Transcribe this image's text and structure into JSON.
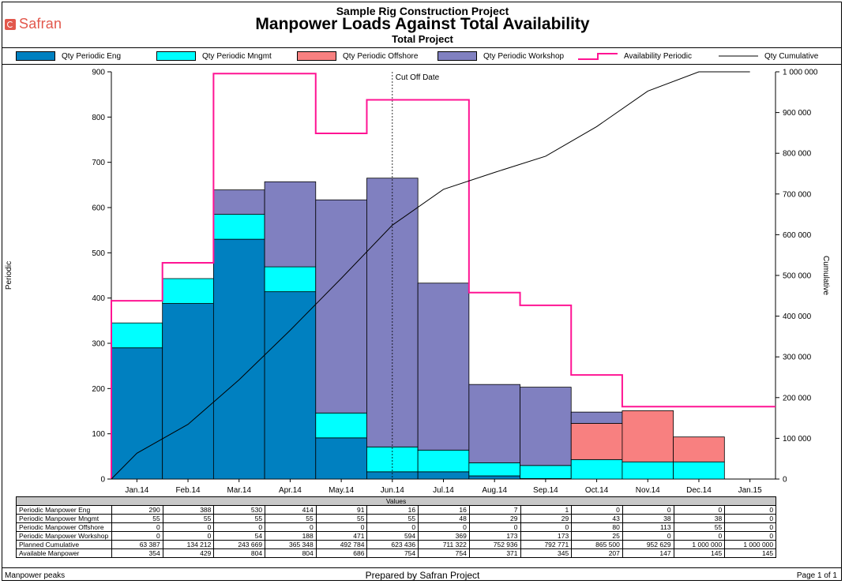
{
  "brand": {
    "name": "Safran",
    "color": "#e2574c"
  },
  "header": {
    "project": "Sample Rig Construction Project",
    "title": "Manpower Loads Against Total Availability",
    "subtitle": "Total Project"
  },
  "legend": [
    {
      "label": "Qty Periodic Eng",
      "kind": "box",
      "color": "#0080c0"
    },
    {
      "label": "Qty Periodic Mngmt",
      "kind": "box",
      "color": "#00ffff"
    },
    {
      "label": "Qty Periodic Offshore",
      "kind": "box",
      "color": "#f88080"
    },
    {
      "label": "Qty Periodic Workshop",
      "kind": "box",
      "color": "#8080c0"
    },
    {
      "label": "Availability Periodic",
      "kind": "step",
      "color": "#ff1493"
    },
    {
      "label": "Qty Cumulative",
      "kind": "line",
      "color": "#000000"
    }
  ],
  "chart_data": {
    "type": "bar",
    "stacked": true,
    "categories": [
      "Jan.14",
      "Feb.14",
      "Mar.14",
      "Apr.14",
      "May.14",
      "Jun.14",
      "Jul.14",
      "Aug.14",
      "Sep.14",
      "Oct.14",
      "Nov.14",
      "Dec.14",
      "Jan.15"
    ],
    "series": [
      {
        "name": "Qty Periodic Eng",
        "color": "#0080c0",
        "values": [
          290,
          388,
          530,
          414,
          91,
          16,
          16,
          7,
          1,
          0,
          0,
          0,
          0
        ]
      },
      {
        "name": "Qty Periodic Mngmt",
        "color": "#00ffff",
        "values": [
          55,
          55,
          55,
          55,
          55,
          55,
          48,
          29,
          29,
          43,
          38,
          38,
          0
        ]
      },
      {
        "name": "Qty Periodic Offshore",
        "color": "#f88080",
        "values": [
          0,
          0,
          0,
          0,
          0,
          0,
          0,
          0,
          0,
          80,
          113,
          55,
          0
        ]
      },
      {
        "name": "Qty Periodic Workshop",
        "color": "#8080c0",
        "values": [
          0,
          0,
          54,
          188,
          471,
          594,
          369,
          173,
          173,
          25,
          0,
          0,
          0
        ]
      }
    ],
    "availability": {
      "name": "Availability Periodic",
      "color": "#ff1493",
      "values": [
        394,
        478,
        896,
        896,
        764,
        838,
        838,
        412,
        384,
        230,
        160,
        160,
        160
      ]
    },
    "cumulative": {
      "name": "Qty Cumulative",
      "color": "#000000",
      "values": [
        63387,
        134212,
        243669,
        365348,
        492784,
        623436,
        711322,
        752936,
        792771,
        865500,
        952629,
        1000000,
        1000000
      ]
    },
    "ylabel": "Periodic",
    "y2label": "Cumulative",
    "ylim": [
      0,
      900
    ],
    "y2lim": [
      0,
      1000000
    ],
    "yticks": [
      "0",
      "100",
      "200",
      "300",
      "400",
      "500",
      "600",
      "700",
      "800",
      "900"
    ],
    "y2ticks": [
      "0",
      "100 000",
      "200 000",
      "300 000",
      "400 000",
      "500 000",
      "600 000",
      "700 000",
      "800 000",
      "900 000",
      "1 000 000"
    ],
    "annotation": {
      "label": "Cut Off Date",
      "position": 5.5
    }
  },
  "table": {
    "header": "Values",
    "rows": [
      {
        "label": "Periodic Manpower Eng",
        "values": [
          "290",
          "388",
          "530",
          "414",
          "91",
          "16",
          "16",
          "7",
          "1",
          "0",
          "0",
          "0",
          "0"
        ]
      },
      {
        "label": "Periodic Manpower Mngmt",
        "values": [
          "55",
          "55",
          "55",
          "55",
          "55",
          "55",
          "48",
          "29",
          "29",
          "43",
          "38",
          "38",
          "0"
        ]
      },
      {
        "label": "Periodic Manpower Offshore",
        "values": [
          "0",
          "0",
          "0",
          "0",
          "0",
          "0",
          "0",
          "0",
          "0",
          "80",
          "113",
          "55",
          "0"
        ]
      },
      {
        "label": "Periodic Manpower Workshop",
        "values": [
          "0",
          "0",
          "54",
          "188",
          "471",
          "594",
          "369",
          "173",
          "173",
          "25",
          "0",
          "0",
          "0"
        ]
      },
      {
        "label": "Planned Cumulative",
        "values": [
          "63 387",
          "134 212",
          "243 669",
          "365 348",
          "492 784",
          "623 436",
          "711 322",
          "752 936",
          "792 771",
          "865 500",
          "952 629",
          "1 000 000",
          "1 000 000"
        ]
      },
      {
        "label": "Available Manpower",
        "values": [
          "354",
          "429",
          "804",
          "804",
          "686",
          "754",
          "754",
          "371",
          "345",
          "207",
          "147",
          "145",
          "145"
        ]
      }
    ]
  },
  "footer": {
    "left": "Manpower peaks",
    "center": "Prepared by Safran Project",
    "right": "Page 1 of 1"
  }
}
